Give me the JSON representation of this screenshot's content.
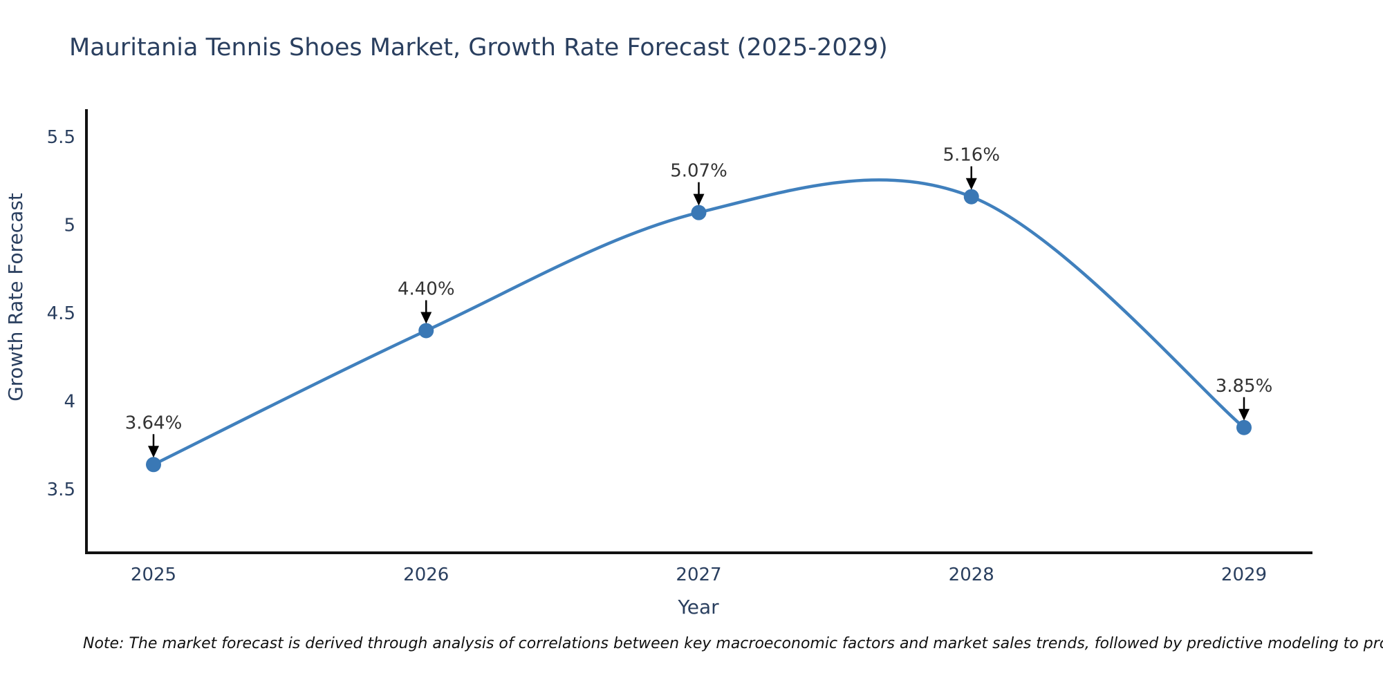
{
  "chart_data": {
    "type": "line",
    "title": "Mauritania Tennis Shoes Market, Growth Rate Forecast (2025-2029)",
    "xlabel": "Year",
    "ylabel": "Growth Rate Forecast",
    "categories": [
      2025,
      2026,
      2027,
      2028,
      2029
    ],
    "series": [
      {
        "name": "Growth Rate Forecast",
        "values": [
          3.64,
          4.4,
          5.07,
          5.16,
          3.85
        ]
      }
    ],
    "point_labels": [
      "3.64%",
      "4.40%",
      "5.07%",
      "5.16%",
      "3.85%"
    ],
    "yticks": [
      3.5,
      4,
      4.5,
      5,
      5.5
    ],
    "ylim": [
      3.13,
      5.66
    ],
    "grid": false,
    "legend": false,
    "curve": "smooth-spline",
    "line_color": "#4080bd",
    "marker_color": "#3a78b5",
    "annotation_arrow_color": "#000000",
    "axis_color": "#111111",
    "text_color": "#2a3f5f"
  },
  "note": "Note: The market forecast is derived through analysis of correlations between key macroeconomic factors and market sales trends, followed by predictive modeling to project future sales"
}
